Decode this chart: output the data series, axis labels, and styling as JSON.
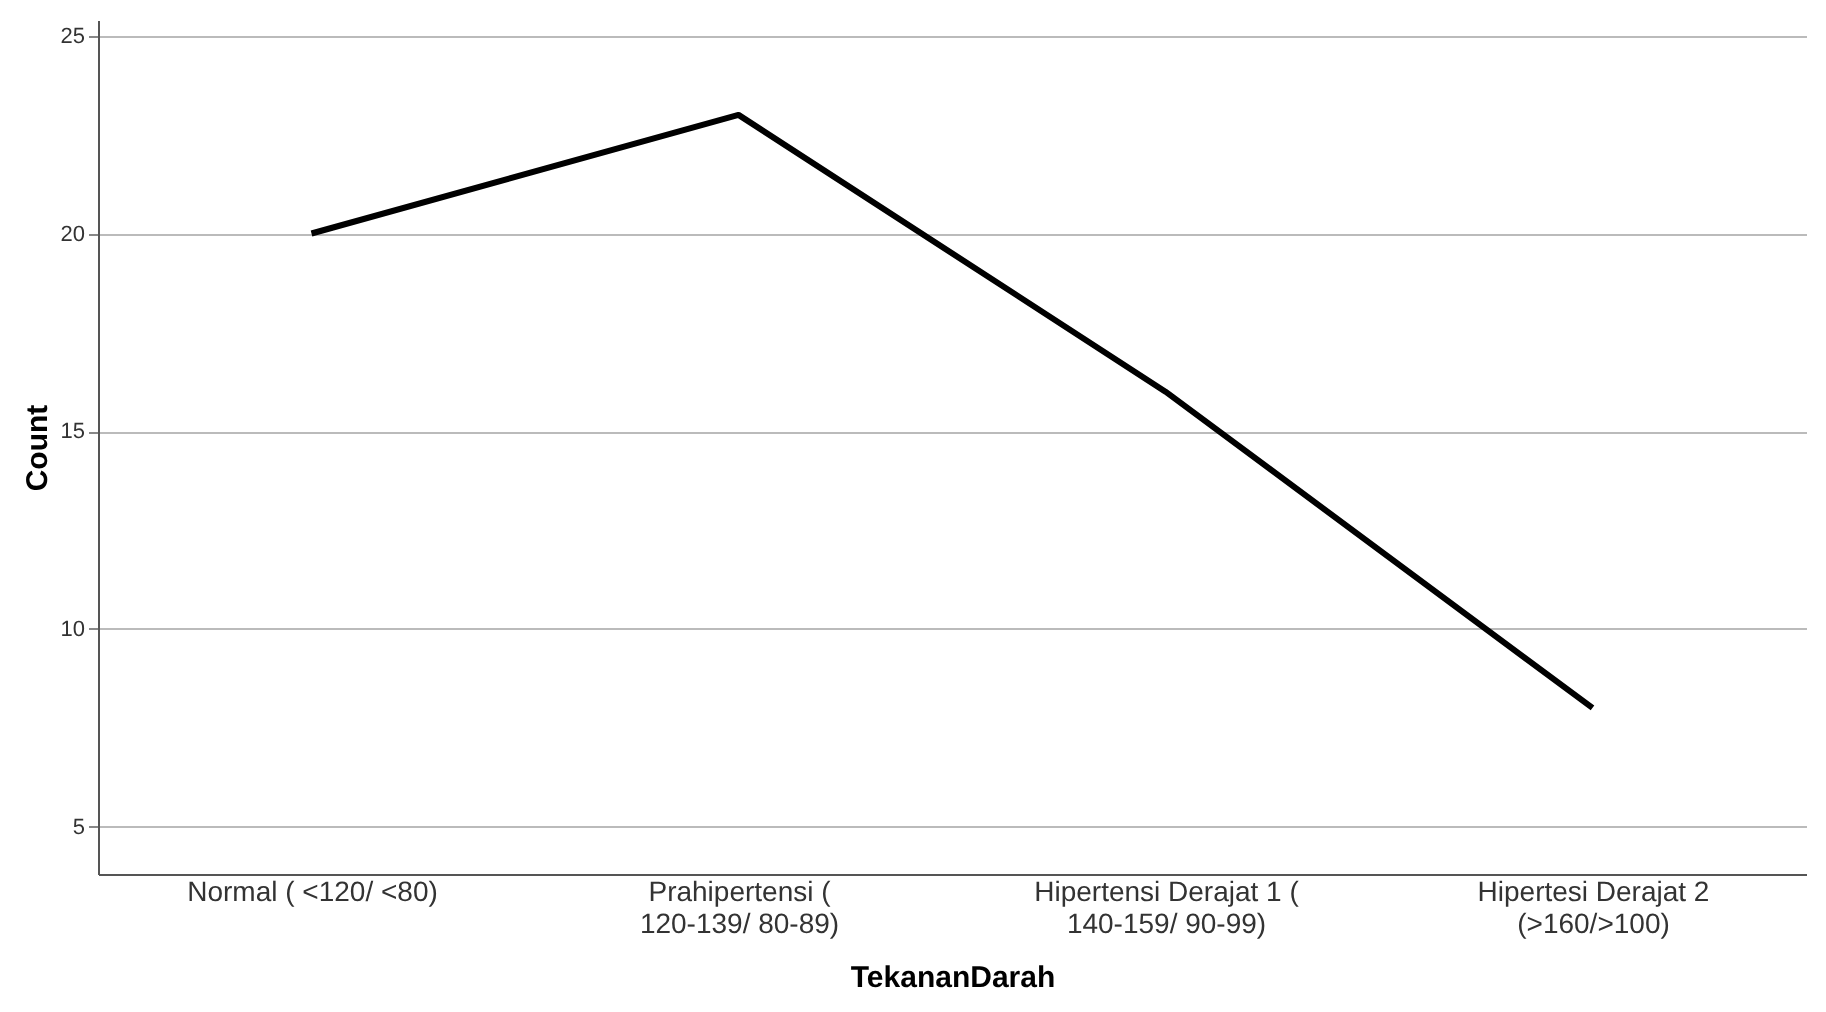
{
  "chart_data": {
    "type": "line",
    "xlabel": "TekananDarah",
    "ylabel": "Count",
    "categories": [
      "Normal ( <120/ <80)",
      "Prahipertensi ( 120-139/ 80-89)",
      "Hipertensi Derajat 1 ( 140-159/ 90-99)",
      "Hipertesi Derajat 2 (>160/>100)"
    ],
    "series": [
      {
        "color": "#000000",
        "values": [
          20,
          23,
          16,
          8
        ]
      }
    ],
    "ylim": [
      3.8,
      25.4
    ],
    "yticks": [
      5,
      10,
      15,
      20,
      25
    ],
    "grid": "y",
    "marker": "none",
    "line_style": "solid"
  }
}
